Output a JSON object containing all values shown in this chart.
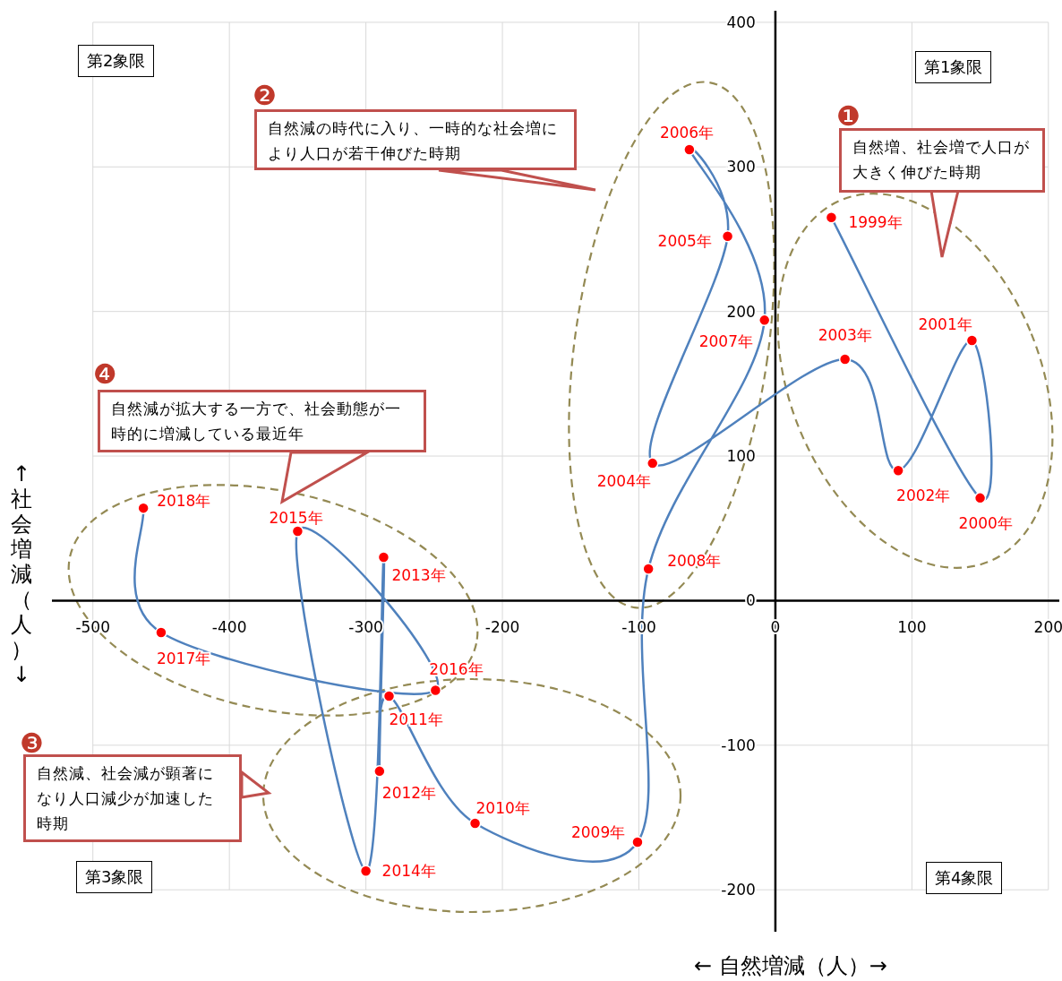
{
  "chart_data": {
    "type": "line",
    "xlabel": "← 自然増減（人）→",
    "ylabel": "↑ 社会増減（人）↓",
    "xlim": [
      -530,
      208
    ],
    "ylim": [
      -229,
      408
    ],
    "xticks": [
      -500,
      -400,
      -300,
      -200,
      -100,
      0,
      100,
      200
    ],
    "yticks": [
      -200,
      -100,
      0,
      100,
      200,
      300,
      400
    ],
    "grid": true,
    "marker": "circle",
    "line_style": "solid",
    "series": [
      {
        "color": "#4f81bd",
        "colors": [
          "#ff0000",
          "#ff0000",
          "#ff0000",
          "#ff0000",
          "#ff0000",
          "#ff0000",
          "#ff0000",
          "#ff0000",
          "#ff0000",
          "#ff0000",
          "#ff0000",
          "#ff0000",
          "#ff0000",
          "#ff0000",
          "#ff0000",
          "#ff0000",
          "#ff0000",
          "#ff0000",
          "#ff0000",
          "#ff0000"
        ],
        "x": [
          41,
          150,
          144,
          90,
          51,
          -90,
          -35,
          -63,
          -8,
          -93,
          -101,
          -220,
          -283,
          -290,
          -287,
          -300,
          -350,
          -249,
          -450,
          -463
        ],
        "values": [
          265,
          71,
          180,
          90,
          167,
          95,
          252,
          312,
          194,
          22,
          -167,
          -154,
          -66,
          -118,
          30,
          -187,
          48,
          -62,
          -22,
          64
        ]
      }
    ],
    "annotations": [
      {
        "text": "1999年",
        "x": 41,
        "y": 265
      },
      {
        "text": "2000年",
        "x": 150,
        "y": 71
      },
      {
        "text": "2001年",
        "x": 144,
        "y": 180
      },
      {
        "text": "2002年",
        "x": 90,
        "y": 90
      },
      {
        "text": "2003年",
        "x": 51,
        "y": 167
      },
      {
        "text": "2004年",
        "x": -90,
        "y": 95
      },
      {
        "text": "2005年",
        "x": -35,
        "y": 252
      },
      {
        "text": "2006年",
        "x": -63,
        "y": 312
      },
      {
        "text": "2007年",
        "x": -8,
        "y": 194
      },
      {
        "text": "2008年",
        "x": -93,
        "y": 22
      },
      {
        "text": "2009年",
        "x": -101,
        "y": -167
      },
      {
        "text": "2010年",
        "x": -220,
        "y": -154
      },
      {
        "text": "2011年",
        "x": -283,
        "y": -66
      },
      {
        "text": "2012年",
        "x": -290,
        "y": -118
      },
      {
        "text": "2013年",
        "x": -287,
        "y": 30
      },
      {
        "text": "2014年",
        "x": -300,
        "y": -187
      },
      {
        "text": "2015年",
        "x": -350,
        "y": 48
      },
      {
        "text": "2016年",
        "x": -249,
        "y": -62
      },
      {
        "text": "2017年",
        "x": -450,
        "y": -22
      },
      {
        "text": "2018年",
        "x": -463,
        "y": 64
      },
      "❶",
      "自然増、社会増で人口が大きく伸びた時期",
      "❷",
      "自然減の時代に入り、一時的な社会増により人口が若干伸びた時期",
      "❸",
      "自然減、社会減が顕著になり人口減少が加速した時期",
      "❹",
      "自然減が拡大する一方で、社会動態が一時的に増減している最近年",
      "第1象限",
      "第2象限",
      "第3象限",
      "第4象限"
    ]
  }
}
